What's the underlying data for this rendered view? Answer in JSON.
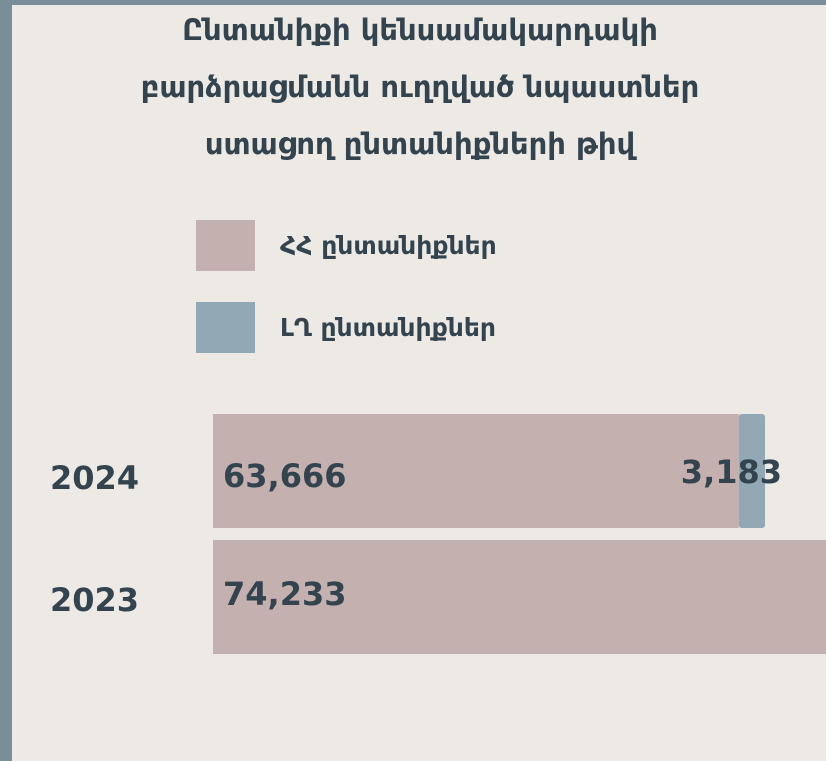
{
  "chart_data": {
    "type": "stacked-barh",
    "title": [
      "Ընտանիքի կենսամակարդակի",
      "բարձրացմանն ուղղված նպաստներ",
      "ստացող ընտանիքների թիվ"
    ],
    "categories": [
      "2024",
      "2023"
    ],
    "series": [
      {
        "name": "ՀՀ ընտանիքներ",
        "color": "#c4b0af",
        "values": [
          63666,
          74233
        ],
        "value_labels": [
          "63,666",
          "74,233"
        ]
      },
      {
        "name": "ԼՂ ընտանիքներ",
        "color": "#93a8b5",
        "values": [
          3183,
          null
        ],
        "value_labels": [
          "3,183",
          null
        ]
      }
    ]
  }
}
